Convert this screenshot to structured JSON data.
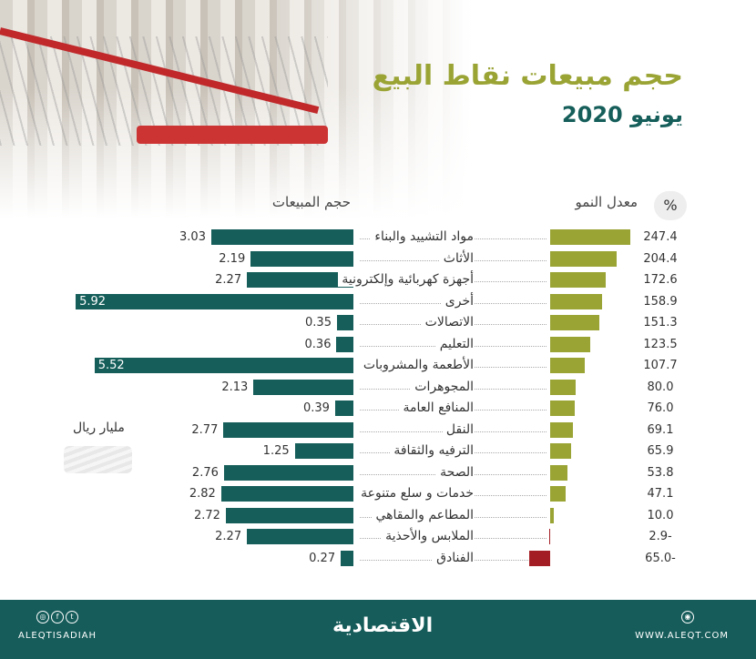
{
  "header": {
    "title": "حجم مبيعات نقاط البيع",
    "subtitle": "يونيو 2020"
  },
  "chart_data": {
    "type": "bar",
    "categories": [
      "مواد التشييد والبناء",
      "الأثاث",
      "أجهزة كهربائية وإلكترونية",
      "أخرى",
      "الاتصالات",
      "التعليم",
      "الأطعمة والمشروبات",
      "المجوهرات",
      "المنافع العامة",
      "النقل",
      "الترفيه والثقافة",
      "الصحة",
      "خدمات و سلع متنوعة",
      "المطاعم والمقاهي",
      "الملابس والأحذية",
      "الفنادق"
    ],
    "series": [
      {
        "name": "حجم المبيعات",
        "unit": "مليار ريال",
        "values": [
          3.03,
          2.19,
          2.27,
          5.92,
          0.35,
          0.36,
          5.52,
          2.13,
          0.39,
          2.77,
          1.25,
          2.76,
          2.82,
          2.72,
          2.27,
          0.27
        ],
        "labels": [
          "3.03",
          "2.19",
          "2.27",
          "5.92",
          "0.35",
          "0.36",
          "5.52",
          "2.13",
          "0.39",
          "2.77",
          "1.25",
          "2.76",
          "2.82",
          "2.72",
          "2.27",
          "0.27"
        ],
        "color": "#155e5a"
      },
      {
        "name": "معدل النمو",
        "unit": "%",
        "values": [
          247.4,
          204.4,
          172.6,
          158.9,
          151.3,
          123.5,
          107.7,
          80.0,
          76.0,
          69.1,
          65.9,
          53.8,
          47.1,
          10.0,
          -2.9,
          -65.0
        ],
        "labels": [
          "247.4",
          "204.4",
          "172.6",
          "158.9",
          "151.3",
          "123.5",
          "107.7",
          "80.0",
          "76.0",
          "69.1",
          "65.9",
          "53.8",
          "47.1",
          "10.0",
          "2.9-",
          "65.0-"
        ],
        "color": "#9aa435",
        "negative_color": "#a31d24"
      }
    ]
  },
  "footer": {
    "handle": "ALEQTISADIAH",
    "logo": "الاقتصادية",
    "website": "WWW.ALEQT.COM",
    "social_icons": [
      "instagram-icon",
      "facebook-icon",
      "twitter-icon"
    ]
  }
}
